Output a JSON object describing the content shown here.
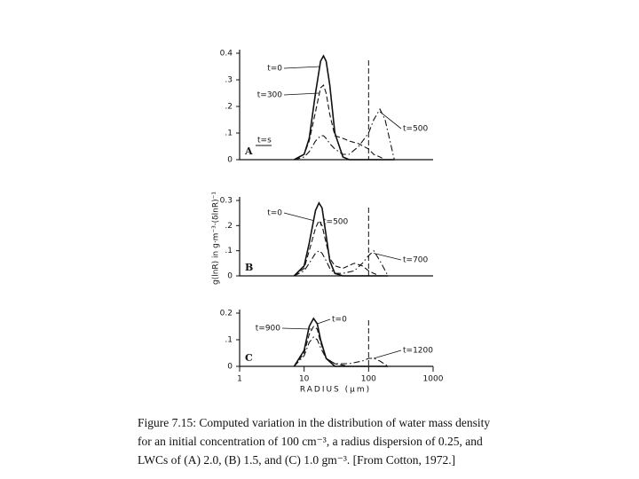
{
  "chart_data": [
    {
      "type": "line",
      "panel_label": "A",
      "annotation": "t=s",
      "log_x": true,
      "xlim": [
        1,
        1000
      ],
      "ylim": [
        0,
        0.4
      ],
      "vline": 100,
      "yticks": [
        0,
        {
          "value": 0.1,
          "label": ".1"
        },
        {
          "value": 0.2,
          "label": ".2"
        },
        {
          "value": 0.3,
          "label": ".3"
        },
        {
          "value": 0.4,
          "label": "0.4"
        }
      ],
      "x": [
        7,
        10,
        12,
        15,
        18,
        20,
        22,
        25,
        30,
        40,
        50,
        70,
        100,
        120,
        150,
        180,
        250
      ],
      "series": [
        {
          "name": "t=0",
          "color": "#111",
          "dash": "solid",
          "values": [
            0,
            0.02,
            0.08,
            0.25,
            0.37,
            0.39,
            0.37,
            0.28,
            0.1,
            0.01,
            0,
            0,
            0,
            0,
            0,
            0,
            0
          ]
        },
        {
          "name": "t=300",
          "color": "#111",
          "dash": "dashed",
          "values": [
            0,
            0.02,
            0.07,
            0.18,
            0.27,
            0.28,
            0.25,
            0.17,
            0.09,
            0.08,
            0.07,
            0.06,
            0.04,
            0.02,
            0.01,
            0,
            0
          ]
        },
        {
          "name": "t=500",
          "color": "#111",
          "dash": "dashdot",
          "values": [
            0,
            0.01,
            0.03,
            0.07,
            0.09,
            0.09,
            0.08,
            0.06,
            0.04,
            0.02,
            0.02,
            0.05,
            0.1,
            0.15,
            0.19,
            0.15,
            0
          ]
        }
      ]
    },
    {
      "type": "line",
      "panel_label": "B",
      "ylabel": "g(lnR) in g·m⁻³·(δlnR)⁻¹",
      "log_x": true,
      "xlim": [
        1,
        1000
      ],
      "ylim": [
        0,
        0.3
      ],
      "vline": 100,
      "yticks": [
        0,
        {
          "value": 0.1,
          "label": ".1"
        },
        {
          "value": 0.2,
          "label": ".2"
        },
        {
          "value": 0.3,
          "label": "0.3"
        }
      ],
      "x": [
        7,
        10,
        12,
        15,
        17,
        19,
        22,
        25,
        30,
        40,
        60,
        80,
        100,
        120,
        150,
        200
      ],
      "series": [
        {
          "name": "t=0",
          "color": "#111",
          "dash": "solid",
          "values": [
            0,
            0.04,
            0.13,
            0.26,
            0.29,
            0.27,
            0.16,
            0.06,
            0.01,
            0,
            0,
            0,
            0,
            0,
            0,
            0
          ]
        },
        {
          "name": "t=500",
          "color": "#111",
          "dash": "dashed",
          "values": [
            0,
            0.03,
            0.1,
            0.19,
            0.22,
            0.2,
            0.13,
            0.07,
            0.04,
            0.03,
            0.05,
            0.04,
            0.02,
            0.01,
            0,
            0
          ]
        },
        {
          "name": "t=700",
          "color": "#111",
          "dash": "dashdot",
          "values": [
            0,
            0.02,
            0.05,
            0.09,
            0.1,
            0.09,
            0.06,
            0.03,
            0.01,
            0.01,
            0.02,
            0.05,
            0.08,
            0.1,
            0.06,
            0
          ]
        }
      ]
    },
    {
      "type": "line",
      "panel_label": "C",
      "xlabel": "RADIUS (μm)",
      "log_x": true,
      "xlim": [
        1,
        1000
      ],
      "ylim": [
        0,
        0.2
      ],
      "vline": 100,
      "yticks": [
        0,
        {
          "value": 0.1,
          "label": ".1"
        },
        {
          "value": 0.2,
          "label": "0.2"
        }
      ],
      "xticks": [
        1,
        10,
        100,
        1000
      ],
      "x": [
        7,
        10,
        12,
        14,
        16,
        18,
        22,
        30,
        50,
        80,
        100,
        120,
        150,
        200
      ],
      "series": [
        {
          "name": "t=0",
          "color": "#111",
          "dash": "solid",
          "values": [
            0,
            0.06,
            0.15,
            0.18,
            0.16,
            0.1,
            0.03,
            0,
            0,
            0,
            0,
            0,
            0,
            0
          ]
        },
        {
          "name": "t=900",
          "color": "#111",
          "dash": "dashed",
          "values": [
            0,
            0.05,
            0.12,
            0.15,
            0.14,
            0.09,
            0.03,
            0.01,
            0,
            0,
            0,
            0,
            0,
            0
          ]
        },
        {
          "name": "t=1200",
          "color": "#111",
          "dash": "dashdot",
          "values": [
            0,
            0.04,
            0.09,
            0.11,
            0.1,
            0.07,
            0.03,
            0.01,
            0.01,
            0.02,
            0.03,
            0.03,
            0.02,
            0
          ]
        }
      ]
    }
  ],
  "caption": [
    "Figure 7.15: Computed variation in the distribution of water mass density",
    "for an initial concentration of 100 cm⁻³, a radius dispersion of 0.25, and",
    "LWCs of (A) 2.0, (B) 1.5, and (C) 1.0 gm⁻³. [From Cotton, 1972.]"
  ]
}
